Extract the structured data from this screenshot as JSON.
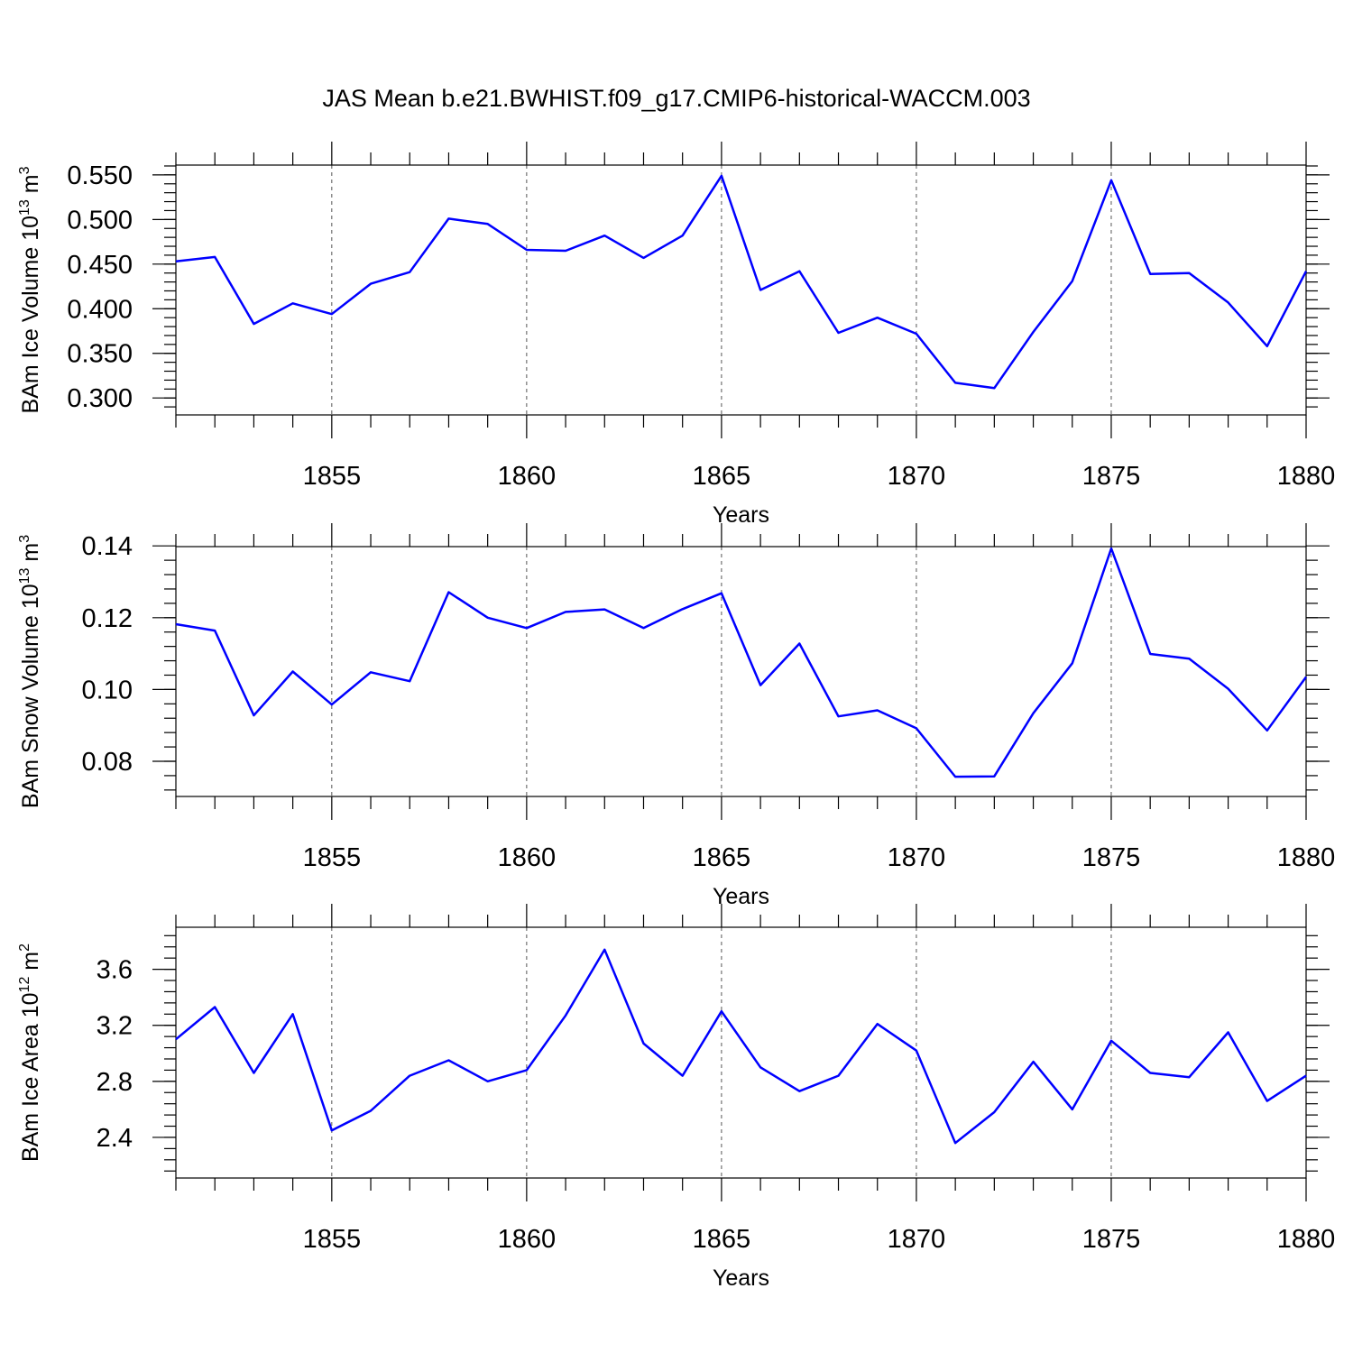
{
  "title": "JAS Mean b.e21.BWHIST.f09_g17.CMIP6-historical-WACCM.003",
  "colors": {
    "series": "#0000ff",
    "axis": "#000000",
    "grid": "#555555"
  },
  "chart_data": [
    {
      "type": "line",
      "name": "ice-volume",
      "ylabel_main": "BAm Ice Volume 10",
      "ylabel_exp": "13",
      "ylabel_unit": " m",
      "ylabel_unit_exp": "3",
      "xlabel": "Years",
      "xlim": [
        1851,
        1880
      ],
      "ylim": [
        0.281,
        0.561
      ],
      "yticks": [
        0.3,
        0.35,
        0.4,
        0.45,
        0.5,
        0.55
      ],
      "ytick_labels": [
        "0.300",
        "0.350",
        "0.400",
        "0.450",
        "0.500",
        "0.550"
      ],
      "yminor_step": 0.01,
      "xticks": [
        1855,
        1860,
        1865,
        1870,
        1875,
        1880
      ],
      "xtick_labels": [
        "1855",
        "1860",
        "1865",
        "1870",
        "1875",
        "1880"
      ],
      "x": [
        1851,
        1852,
        1853,
        1854,
        1855,
        1856,
        1857,
        1858,
        1859,
        1860,
        1861,
        1862,
        1863,
        1864,
        1865,
        1866,
        1867,
        1868,
        1869,
        1870,
        1871,
        1872,
        1873,
        1874,
        1875,
        1876,
        1877,
        1878,
        1879,
        1880
      ],
      "values": [
        0.453,
        0.458,
        0.383,
        0.406,
        0.394,
        0.428,
        0.441,
        0.501,
        0.495,
        0.466,
        0.465,
        0.482,
        0.457,
        0.482,
        0.549,
        0.421,
        0.442,
        0.373,
        0.39,
        0.372,
        0.317,
        0.311,
        0.374,
        0.431,
        0.544,
        0.439,
        0.44,
        0.407,
        0.358,
        0.442
      ]
    },
    {
      "type": "line",
      "name": "snow-volume",
      "ylabel_main": "BAm Snow Volume 10",
      "ylabel_exp": "13",
      "ylabel_unit": " m",
      "ylabel_unit_exp": "3",
      "xlabel": "Years",
      "xlim": [
        1851,
        1880
      ],
      "ylim": [
        0.0702,
        0.1398
      ],
      "yticks": [
        0.08,
        0.1,
        0.12,
        0.14
      ],
      "ytick_labels": [
        "0.08",
        "0.10",
        "0.12",
        "0.14"
      ],
      "yminor_step": 0.004,
      "xticks": [
        1855,
        1860,
        1865,
        1870,
        1875,
        1880
      ],
      "xtick_labels": [
        "1855",
        "1860",
        "1865",
        "1870",
        "1875",
        "1880"
      ],
      "x": [
        1851,
        1852,
        1853,
        1854,
        1855,
        1856,
        1857,
        1858,
        1859,
        1860,
        1861,
        1862,
        1863,
        1864,
        1865,
        1866,
        1867,
        1868,
        1869,
        1870,
        1871,
        1872,
        1873,
        1874,
        1875,
        1876,
        1877,
        1878,
        1879,
        1880
      ],
      "values": [
        0.1182,
        0.1164,
        0.0928,
        0.105,
        0.0958,
        0.1048,
        0.1023,
        0.1271,
        0.12,
        0.1171,
        0.1216,
        0.1223,
        0.1171,
        0.1224,
        0.1268,
        0.1012,
        0.1128,
        0.0925,
        0.0942,
        0.0892,
        0.0757,
        0.0758,
        0.0934,
        0.1073,
        0.1393,
        0.1099,
        0.1086,
        0.1002,
        0.0886,
        0.1035
      ]
    },
    {
      "type": "line",
      "name": "ice-area",
      "ylabel_main": "BAm Ice Area 10",
      "ylabel_exp": "12",
      "ylabel_unit": " m",
      "ylabel_unit_exp": "2",
      "xlabel": "Years",
      "xlim": [
        1851,
        1880
      ],
      "ylim": [
        2.11,
        3.9
      ],
      "yticks": [
        2.4,
        2.8,
        3.2,
        3.6
      ],
      "ytick_labels": [
        "2.4",
        "2.8",
        "3.2",
        "3.6"
      ],
      "yminor_step": 0.08,
      "xticks": [
        1855,
        1860,
        1865,
        1870,
        1875,
        1880
      ],
      "xtick_labels": [
        "1855",
        "1860",
        "1865",
        "1870",
        "1875",
        "1880"
      ],
      "x": [
        1851,
        1852,
        1853,
        1854,
        1855,
        1856,
        1857,
        1858,
        1859,
        1860,
        1861,
        1862,
        1863,
        1864,
        1865,
        1866,
        1867,
        1868,
        1869,
        1870,
        1871,
        1872,
        1873,
        1874,
        1875,
        1876,
        1877,
        1878,
        1879,
        1880
      ],
      "values": [
        3.1,
        3.33,
        2.86,
        3.28,
        2.45,
        2.59,
        2.84,
        2.95,
        2.8,
        2.88,
        3.27,
        3.74,
        3.07,
        2.84,
        3.3,
        2.9,
        2.73,
        2.84,
        3.21,
        3.02,
        2.36,
        2.58,
        2.94,
        2.6,
        3.09,
        2.86,
        2.83,
        3.15,
        2.66,
        2.84
      ]
    }
  ]
}
